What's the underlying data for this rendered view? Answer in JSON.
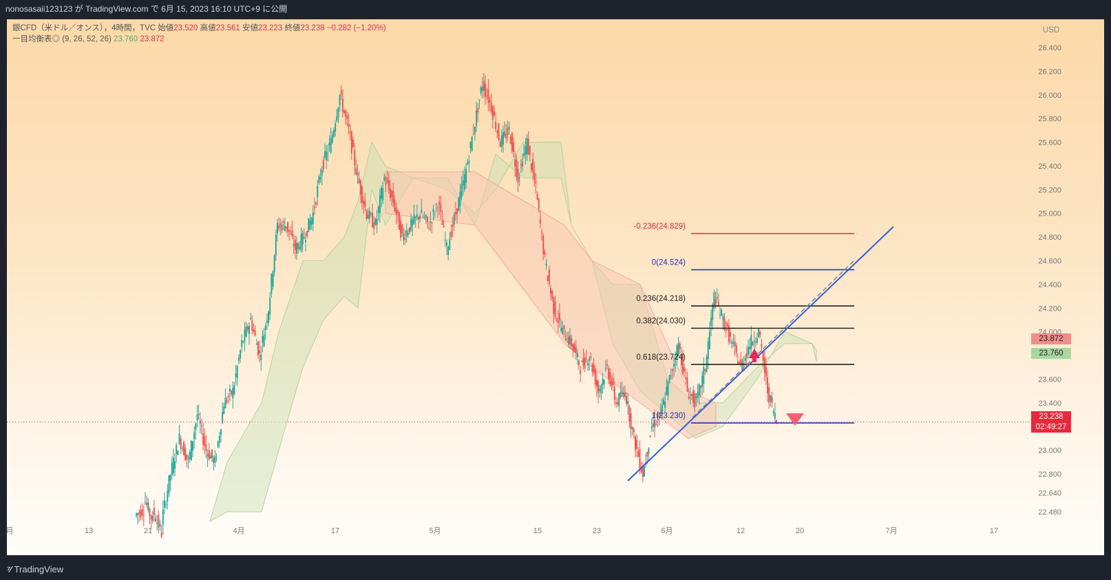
{
  "header": {
    "text": "nonosasaii123123 が TradingView.com で 6月 15, 2023 16:10 UTC+9 に公開"
  },
  "legend": {
    "instrument": "銀CFD（米ドル／オンス），4時間，TVC",
    "open_label": "始値",
    "open": "23.520",
    "high_label": "高値",
    "high": "23.561",
    "low_label": "安値",
    "low": "23.223",
    "close_label": "終値",
    "close": "23.238",
    "change": "−0.282 (−1.20%)",
    "ichimoku_label": "一目均衡表◎ (9, 26, 52, 26)",
    "ichimoku_v1": "23.760",
    "ichimoku_v2": "23.872"
  },
  "currency": "USD",
  "price_tags": {
    "span_b": "23.872",
    "span_a": "23.760",
    "last": "23.238",
    "countdown": "02:49:27"
  },
  "brand": {
    "name": "TradingView"
  },
  "colors": {
    "up": "#26a69a",
    "down": "#ef5350",
    "fib_red": "#e8283c",
    "fib_blue": "#2a35b0",
    "trend": "#2f5fe0",
    "cloud_green": "#c8dfb4",
    "cloud_red": "#f8c6b0"
  },
  "chart_data": {
    "type": "candlestick",
    "y_axis": {
      "ticks": [
        "26.400",
        "26.200",
        "26.000",
        "25.800",
        "25.600",
        "25.400",
        "25.200",
        "25.000",
        "24.800",
        "24.600",
        "24.400",
        "24.200",
        "24.000",
        "23.800",
        "23.600",
        "23.400",
        "23.200",
        "23.000",
        "22.800",
        "22.640",
        "22.480"
      ]
    },
    "x_axis": {
      "ticks": [
        "月",
        "13",
        "21",
        "4月",
        "17",
        "5月",
        "15",
        "23",
        "6月",
        "12",
        "20",
        "7月",
        "17"
      ]
    },
    "close_path": [
      [
        22.45,
        22.5
      ],
      [
        22.6,
        22.4
      ],
      [
        22.5,
        22.3
      ],
      [
        22.4,
        22.8
      ],
      [
        22.8,
        23.1
      ],
      [
        23.1,
        22.9
      ],
      [
        22.9,
        23.3
      ],
      [
        23.3,
        23.0
      ],
      [
        23.0,
        22.9
      ],
      [
        22.9,
        23.4
      ],
      [
        23.4,
        23.5
      ],
      [
        23.5,
        23.9
      ],
      [
        23.9,
        24.1
      ],
      [
        24.1,
        23.8
      ],
      [
        23.8,
        24.2
      ],
      [
        24.2,
        24.9
      ],
      [
        24.9,
        24.9
      ],
      [
        24.9,
        24.7
      ],
      [
        24.7,
        24.8
      ],
      [
        24.8,
        25.0
      ],
      [
        25.0,
        25.4
      ],
      [
        25.4,
        25.6
      ],
      [
        25.6,
        26.0
      ],
      [
        26.0,
        25.7
      ],
      [
        25.7,
        25.3
      ],
      [
        25.3,
        25.0
      ],
      [
        25.0,
        24.9
      ],
      [
        24.9,
        25.3
      ],
      [
        25.3,
        25.1
      ],
      [
        25.1,
        24.8
      ],
      [
        24.8,
        24.9
      ],
      [
        24.9,
        25.0
      ],
      [
        25.0,
        24.9
      ],
      [
        24.9,
        25.1
      ],
      [
        25.1,
        24.7
      ],
      [
        24.7,
        25.0
      ],
      [
        25.0,
        25.3
      ],
      [
        25.3,
        25.7
      ],
      [
        25.7,
        26.1
      ],
      [
        26.1,
        25.9
      ],
      [
        25.9,
        25.6
      ],
      [
        25.6,
        25.7
      ],
      [
        25.7,
        25.3
      ],
      [
        25.3,
        25.6
      ],
      [
        25.6,
        25.2
      ],
      [
        25.2,
        24.6
      ],
      [
        24.6,
        24.2
      ],
      [
        24.2,
        24.0
      ],
      [
        24.0,
        23.9
      ],
      [
        23.9,
        23.7
      ],
      [
        23.7,
        23.8
      ],
      [
        23.8,
        23.5
      ],
      [
        23.5,
        23.7
      ],
      [
        23.7,
        23.4
      ],
      [
        23.4,
        23.5
      ],
      [
        23.5,
        23.1
      ],
      [
        23.1,
        22.8
      ],
      [
        22.8,
        23.2
      ],
      [
        23.2,
        23.3
      ],
      [
        23.3,
        23.6
      ],
      [
        23.6,
        23.9
      ],
      [
        23.9,
        23.5
      ],
      [
        23.5,
        23.4
      ],
      [
        23.4,
        23.7
      ],
      [
        23.7,
        24.3
      ],
      [
        24.3,
        24.1
      ],
      [
        24.1,
        23.9
      ],
      [
        23.9,
        23.7
      ],
      [
        23.7,
        23.9
      ],
      [
        23.9,
        24.0
      ],
      [
        24.0,
        23.5
      ],
      [
        23.5,
        23.24
      ]
    ],
    "fibonacci": [
      {
        "label": "-0.236(24.829)",
        "level": 24.829
      },
      {
        "label": "0(24.524)",
        "level": 24.524
      },
      {
        "label": "0.236(24.218)",
        "level": 24.218
      },
      {
        "label": "0.382(24.030)",
        "level": 24.03
      },
      {
        "label": "0.618(23.724)",
        "level": 23.724
      },
      {
        "label": "1(23.230)",
        "level": 23.23
      }
    ]
  }
}
